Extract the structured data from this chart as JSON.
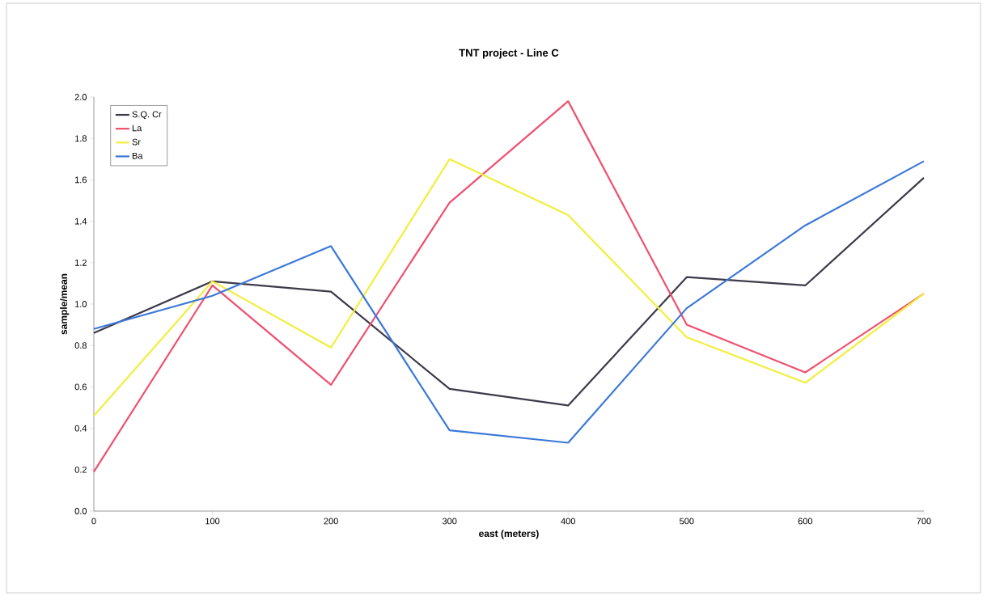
{
  "chart_data": {
    "type": "line",
    "title": "TNT project - Line C",
    "xlabel": "east (meters)",
    "ylabel": "sample/mean",
    "x": [
      0,
      100,
      200,
      300,
      400,
      500,
      600,
      700
    ],
    "series": [
      {
        "name": "S.Q. Cr",
        "color": "#3d3a4a",
        "values": [
          0.86,
          1.11,
          1.06,
          0.59,
          0.51,
          1.13,
          1.09,
          1.61
        ]
      },
      {
        "name": "La",
        "color": "#f0506e",
        "values": [
          0.19,
          1.09,
          0.61,
          1.49,
          1.98,
          0.9,
          0.67,
          1.05
        ]
      },
      {
        "name": "Sr",
        "color": "#f2ee3c",
        "values": [
          0.46,
          1.11,
          0.79,
          1.7,
          1.43,
          0.84,
          0.62,
          1.05
        ]
      },
      {
        "name": "Ba",
        "color": "#3c78d8",
        "values": [
          0.88,
          1.04,
          1.28,
          0.39,
          0.33,
          0.98,
          1.38,
          1.69
        ]
      }
    ],
    "xlim": [
      0,
      700
    ],
    "xticks": [
      0,
      100,
      200,
      300,
      400,
      500,
      600,
      700
    ],
    "ylim": [
      0,
      2.0
    ],
    "yticks": [
      {
        "value": 0,
        "label": "0.0"
      },
      {
        "value": 0.2,
        "label": "0.2"
      },
      {
        "value": 0.4,
        "label": "0.4"
      },
      {
        "value": 0.6,
        "label": "0.6"
      },
      {
        "value": 0.8,
        "label": "0.8"
      },
      {
        "value": 1.0,
        "label": "1.0"
      },
      {
        "value": 1.2,
        "label": "1.2"
      },
      {
        "value": 1.4,
        "label": "1.4"
      },
      {
        "value": 1.6,
        "label": "1.6"
      },
      {
        "value": 1.8,
        "label": "1.8"
      },
      {
        "value": 2.0,
        "label": "2.0"
      }
    ],
    "legend": "top left",
    "grid": false,
    "marker": "none",
    "line_style": "solid"
  }
}
